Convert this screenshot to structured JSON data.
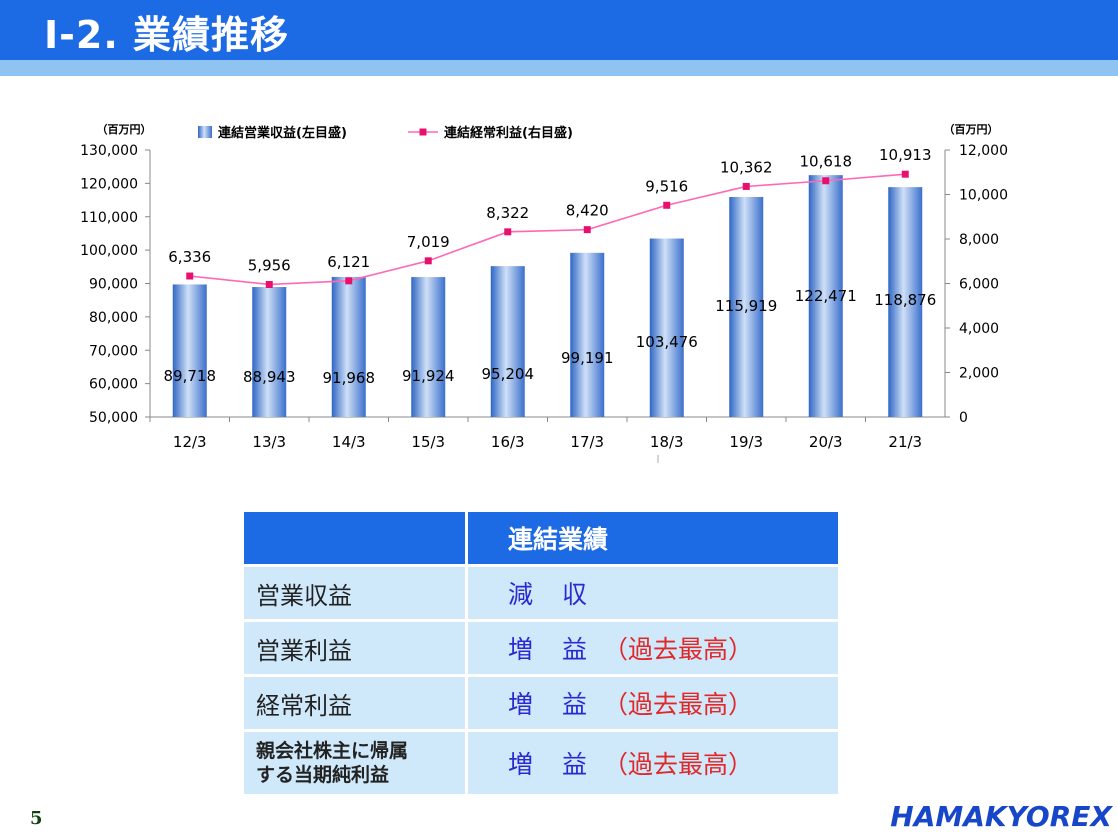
{
  "header": {
    "title": "Ⅰ-2. 業績推移"
  },
  "chart_data": {
    "type": "bar",
    "categories": [
      "12/3",
      "13/3",
      "14/3",
      "15/3",
      "16/3",
      "17/3",
      "18/3",
      "19/3",
      "20/3",
      "21/3"
    ],
    "series": [
      {
        "name": "連結営業収益(左目盛)",
        "kind": "bar",
        "axis": "left",
        "values": [
          89718,
          88943,
          91968,
          91924,
          95204,
          99191,
          103476,
          115919,
          122471,
          118876
        ],
        "labels": [
          "89,718",
          "88,943",
          "91,968",
          "91,924",
          "95,204",
          "99,191",
          "103,476",
          "115,919",
          "122,471",
          "118,876"
        ]
      },
      {
        "name": "連結経常利益(右目盛)",
        "kind": "line",
        "axis": "right",
        "values": [
          6336,
          5956,
          6121,
          7019,
          8322,
          8420,
          9516,
          10362,
          10618,
          10913
        ],
        "labels": [
          "6,336",
          "5,956",
          "6,121",
          "7,019",
          "8,322",
          "8,420",
          "9,516",
          "10,362",
          "10,618",
          "10,913"
        ]
      }
    ],
    "left_axis": {
      "unit": "（百万円）",
      "ylim": [
        50000,
        130000
      ],
      "ticks": [
        50000,
        60000,
        70000,
        80000,
        90000,
        100000,
        110000,
        120000,
        130000
      ],
      "tick_labels": [
        "50,000",
        "60,000",
        "70,000",
        "80,000",
        "90,000",
        "100,000",
        "110,000",
        "120,000",
        "130,000"
      ]
    },
    "right_axis": {
      "unit": "（百万円）",
      "ylim": [
        0,
        12000
      ],
      "ticks": [
        0,
        2000,
        4000,
        6000,
        8000,
        10000,
        12000
      ],
      "tick_labels": [
        "0",
        "2,000",
        "4,000",
        "6,000",
        "8,000",
        "10,000",
        "12,000"
      ]
    },
    "legend_position": "top",
    "colors": {
      "bar": "#5b8fd6",
      "line": "#ff69b4",
      "marker": "#e8106e"
    }
  },
  "table": {
    "header": [
      "",
      "連結業績"
    ],
    "rows": [
      {
        "item": "営業収益",
        "result": "減　収",
        "note": ""
      },
      {
        "item": "営業利益",
        "result": "増　益",
        "note": "（過去最高）"
      },
      {
        "item": "経常利益",
        "result": "増　益",
        "note": "（過去最高）"
      },
      {
        "item": "親会社株主に帰属\nする当期純利益",
        "result": "増　益",
        "note": "（過去最高）"
      }
    ]
  },
  "footer": {
    "page": "5",
    "logo": "HAMAKYOREX"
  }
}
